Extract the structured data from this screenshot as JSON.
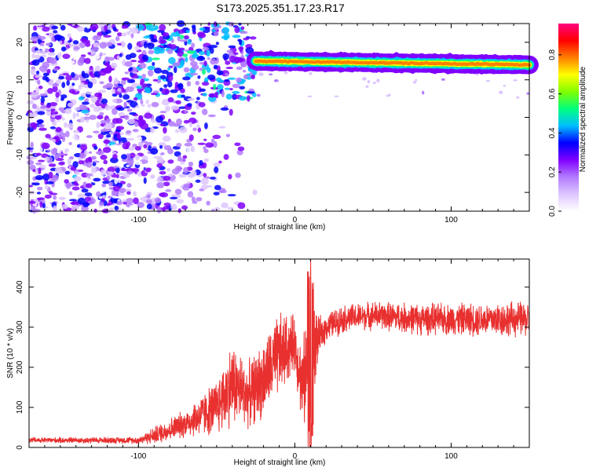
{
  "figure": {
    "title": "S173.2025.351.17.23.R17"
  },
  "chart_data": [
    {
      "type": "heatmap",
      "xlabel": "Height of straight line (km)",
      "ylabel": "Frequency (Hz)",
      "xlim": [
        -170,
        150
      ],
      "ylim": [
        -25,
        25
      ],
      "xticks": [
        -100,
        0,
        100
      ],
      "yticks": [
        -20,
        -10,
        0,
        10,
        20
      ],
      "colorbar": {
        "label": "Normalized spectral amplitude",
        "ticks": [
          0.0,
          0.2,
          0.4,
          0.6,
          0.8
        ],
        "range": [
          0.0,
          0.96
        ],
        "colors": [
          "#ffffff",
          "#ddc6ff",
          "#b37bff",
          "#7f00ff",
          "#0000ff",
          "#00bfff",
          "#00ff7f",
          "#7fff00",
          "#ffff00",
          "#ff7f00",
          "#ff0000",
          "#ff0080"
        ]
      },
      "features": {
        "noise_region_x": [
          -170,
          -25
        ],
        "band_x": [
          -25,
          150
        ],
        "band_frequency_hz": [
          15,
          14
        ],
        "band_peak_amplitude": 0.8
      }
    },
    {
      "type": "line",
      "xlabel": "Height of straight line (km)",
      "ylabel": "SNR (10 * v/v)",
      "xlim": [
        -170,
        150
      ],
      "ylim": [
        0,
        470
      ],
      "xticks": [
        -100,
        0,
        100
      ],
      "yticks": [
        0,
        100,
        200,
        300,
        400
      ],
      "series": [
        {
          "color": "#e8302f",
          "envelope": {
            "x": [
              -170,
              -100,
              -90,
              -70,
              -50,
              -40,
              -30,
              -20,
              -10,
              0,
              5,
              10,
              15,
              20,
              30,
              50,
              80,
              100,
              130,
              150
            ],
            "center": [
              18,
              18,
              30,
              60,
              100,
              160,
              130,
              170,
              230,
              260,
              150,
              240,
              270,
              300,
              320,
              330,
              320,
              320,
              320,
              320
            ],
            "amplitude": [
              8,
              10,
              25,
              40,
              80,
              120,
              90,
              110,
              120,
              80,
              120,
              200,
              60,
              40,
              40,
              40,
              45,
              45,
              50,
              50
            ]
          }
        }
      ]
    }
  ]
}
